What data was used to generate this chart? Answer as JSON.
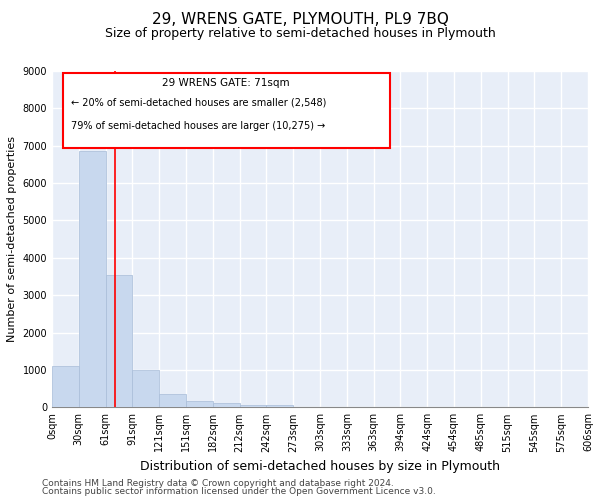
{
  "title": "29, WRENS GATE, PLYMOUTH, PL9 7BQ",
  "subtitle": "Size of property relative to semi-detached houses in Plymouth",
  "xlabel": "Distribution of semi-detached houses by size in Plymouth",
  "ylabel": "Number of semi-detached properties",
  "bin_labels": [
    "0sqm",
    "30sqm",
    "61sqm",
    "91sqm",
    "121sqm",
    "151sqm",
    "182sqm",
    "212sqm",
    "242sqm",
    "273sqm",
    "303sqm",
    "333sqm",
    "363sqm",
    "394sqm",
    "424sqm",
    "454sqm",
    "485sqm",
    "515sqm",
    "545sqm",
    "575sqm",
    "606sqm"
  ],
  "bar_values": [
    1100,
    6850,
    3550,
    1000,
    350,
    175,
    125,
    75,
    50,
    0,
    0,
    0,
    0,
    0,
    0,
    0,
    0,
    0,
    0,
    0
  ],
  "bar_color": "#c8d8ee",
  "bar_edge_color": "#a8bcd8",
  "ylim": [
    0,
    9000
  ],
  "yticks": [
    0,
    1000,
    2000,
    3000,
    4000,
    5000,
    6000,
    7000,
    8000,
    9000
  ],
  "annotation_title": "29 WRENS GATE: 71sqm",
  "annotation_line1": "← 20% of semi-detached houses are smaller (2,548)",
  "annotation_line2": "79% of semi-detached houses are larger (10,275) →",
  "footer_line1": "Contains HM Land Registry data © Crown copyright and database right 2024.",
  "footer_line2": "Contains public sector information licensed under the Open Government Licence v3.0.",
  "background_color": "#e8eef8",
  "grid_color": "#ffffff",
  "title_fontsize": 11,
  "subtitle_fontsize": 9,
  "ylabel_fontsize": 8,
  "xlabel_fontsize": 9,
  "tick_fontsize": 7,
  "annotation_fontsize": 7.5,
  "footer_fontsize": 6.5
}
